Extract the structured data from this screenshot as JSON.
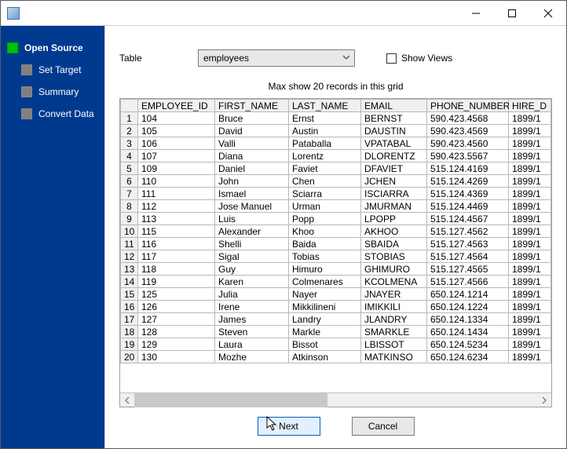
{
  "window": {
    "title": ""
  },
  "sidebar": {
    "steps": [
      {
        "label": "Open Source",
        "active": true
      },
      {
        "label": "Set Target",
        "active": false
      },
      {
        "label": "Summary",
        "active": false
      },
      {
        "label": "Convert Data",
        "active": false
      }
    ]
  },
  "form": {
    "table_label": "Table",
    "table_value": "employees",
    "show_views_label": "Show Views",
    "show_views_checked": false
  },
  "hint": "Max show 20 records in this grid",
  "grid": {
    "columns": [
      "EMPLOYEE_ID",
      "FIRST_NAME",
      "LAST_NAME",
      "EMAIL",
      "PHONE_NUMBER",
      "HIRE_D"
    ],
    "rows": [
      [
        "104",
        "Bruce",
        "Ernst",
        "BERNST",
        "590.423.4568",
        "1899/1"
      ],
      [
        "105",
        "David",
        "Austin",
        "DAUSTIN",
        "590.423.4569",
        "1899/1"
      ],
      [
        "106",
        "Valli",
        "Pataballa",
        "VPATABAL",
        "590.423.4560",
        "1899/1"
      ],
      [
        "107",
        "Diana",
        "Lorentz",
        "DLORENTZ",
        "590.423.5567",
        "1899/1"
      ],
      [
        "109",
        "Daniel",
        "Faviet",
        "DFAVIET",
        "515.124.4169",
        "1899/1"
      ],
      [
        "110",
        "John",
        "Chen",
        "JCHEN",
        "515.124.4269",
        "1899/1"
      ],
      [
        "111",
        "Ismael",
        "Sciarra",
        "ISCIARRA",
        "515.124.4369",
        "1899/1"
      ],
      [
        "112",
        "Jose Manuel",
        "Urman",
        "JMURMAN",
        "515.124.4469",
        "1899/1"
      ],
      [
        "113",
        "Luis",
        "Popp",
        "LPOPP",
        "515.124.4567",
        "1899/1"
      ],
      [
        "115",
        "Alexander",
        "Khoo",
        "AKHOO",
        "515.127.4562",
        "1899/1"
      ],
      [
        "116",
        "Shelli",
        "Baida",
        "SBAIDA",
        "515.127.4563",
        "1899/1"
      ],
      [
        "117",
        "Sigal",
        "Tobias",
        "STOBIAS",
        "515.127.4564",
        "1899/1"
      ],
      [
        "118",
        "Guy",
        "Himuro",
        "GHIMURO",
        "515.127.4565",
        "1899/1"
      ],
      [
        "119",
        "Karen",
        "Colmenares",
        "KCOLMENA",
        "515.127.4566",
        "1899/1"
      ],
      [
        "125",
        "Julia",
        "Nayer",
        "JNAYER",
        "650.124.1214",
        "1899/1"
      ],
      [
        "126",
        "Irene",
        "Mikkilineni",
        "IMIKKILI",
        "650.124.1224",
        "1899/1"
      ],
      [
        "127",
        "James",
        "Landry",
        "JLANDRY",
        "650.124.1334",
        "1899/1"
      ],
      [
        "128",
        "Steven",
        "Markle",
        "SMARKLE",
        "650.124.1434",
        "1899/1"
      ],
      [
        "129",
        "Laura",
        "Bissot",
        "LBISSOT",
        "650.124.5234",
        "1899/1"
      ],
      [
        "130",
        "Mozhe",
        "Atkinson",
        "MATKINSO",
        "650.124.6234",
        "1899/1"
      ]
    ]
  },
  "buttons": {
    "next": "Next",
    "cancel": "Cancel"
  },
  "colors": {
    "sidebar_bg": "#003a8f",
    "active_marker": "#00c000",
    "grid_header_bg": "#f0f0f0",
    "primary_border": "#005fb8"
  }
}
